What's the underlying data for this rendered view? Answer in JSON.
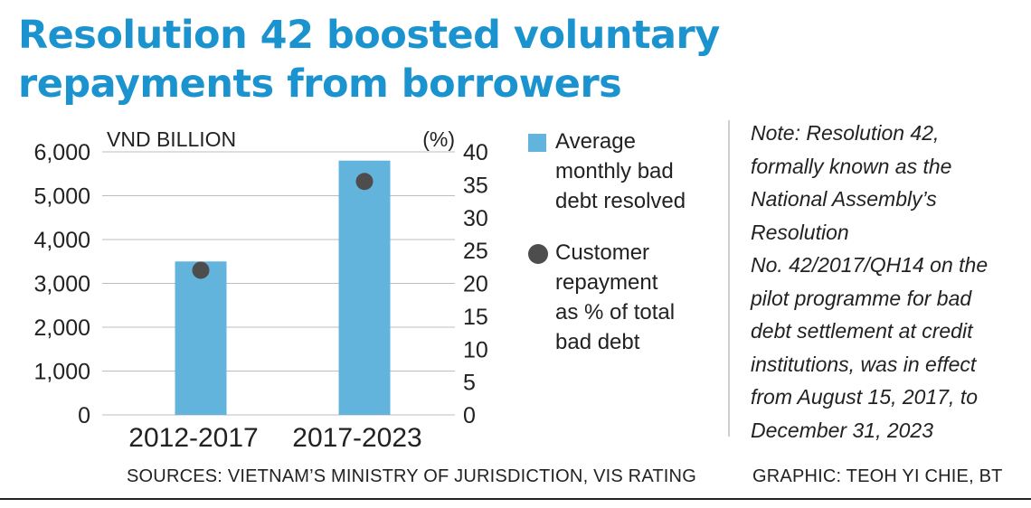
{
  "title_lines": [
    "Resolution 42 boosted voluntary",
    "repayments from borrowers"
  ],
  "colors": {
    "title": "#1a93cf",
    "bar": "#63b4dd",
    "dot": "#4d4d4d",
    "grid": "#bdbdbd"
  },
  "legend": {
    "bar_label_lines": [
      "Average",
      "monthly bad",
      "debt resolved"
    ],
    "dot_label_lines": [
      "Customer",
      "repayment",
      "as % of total",
      "bad debt"
    ]
  },
  "note_lines": [
    "Note: Resolution 42,",
    "formally known as the",
    "National Assembly’s",
    "Resolution",
    "No. 42/2017/QH14 on the",
    "pilot programme for bad",
    "debt settlement at credit",
    "institutions, was in effect",
    "from August 15, 2017, to",
    "December 31, 2023"
  ],
  "footer": {
    "sources": "SOURCES: VIETNAM’S MINISTRY OF JURISDICTION, VIS RATING",
    "credit": "GRAPHIC: TEOH YI CHIE, BT"
  },
  "chart_data": {
    "type": "bar",
    "categories": [
      "2012-2017",
      "2017-2023"
    ],
    "series": [
      {
        "name": "Average monthly bad debt resolved",
        "type": "bar",
        "axis": "left",
        "values": [
          3500,
          5800
        ]
      },
      {
        "name": "Customer repayment as % of total bad debt",
        "type": "scatter",
        "axis": "right",
        "values": [
          22,
          35.5
        ]
      }
    ],
    "left_axis": {
      "label": "VND BILLION",
      "ylim": [
        0,
        6000
      ],
      "ticks": [
        0,
        1000,
        2000,
        3000,
        4000,
        5000,
        6000
      ],
      "tick_labels": [
        "0",
        "1,000",
        "2,000",
        "3,000",
        "4,000",
        "5,000",
        "6,000"
      ]
    },
    "right_axis": {
      "label": "(%)",
      "ylim": [
        0,
        40
      ],
      "ticks": [
        0,
        5,
        10,
        15,
        20,
        25,
        30,
        35,
        40
      ],
      "tick_labels": [
        "0",
        "5",
        "10",
        "15",
        "20",
        "25",
        "30",
        "35",
        "40"
      ]
    },
    "grid": true,
    "legend_position": "right"
  }
}
